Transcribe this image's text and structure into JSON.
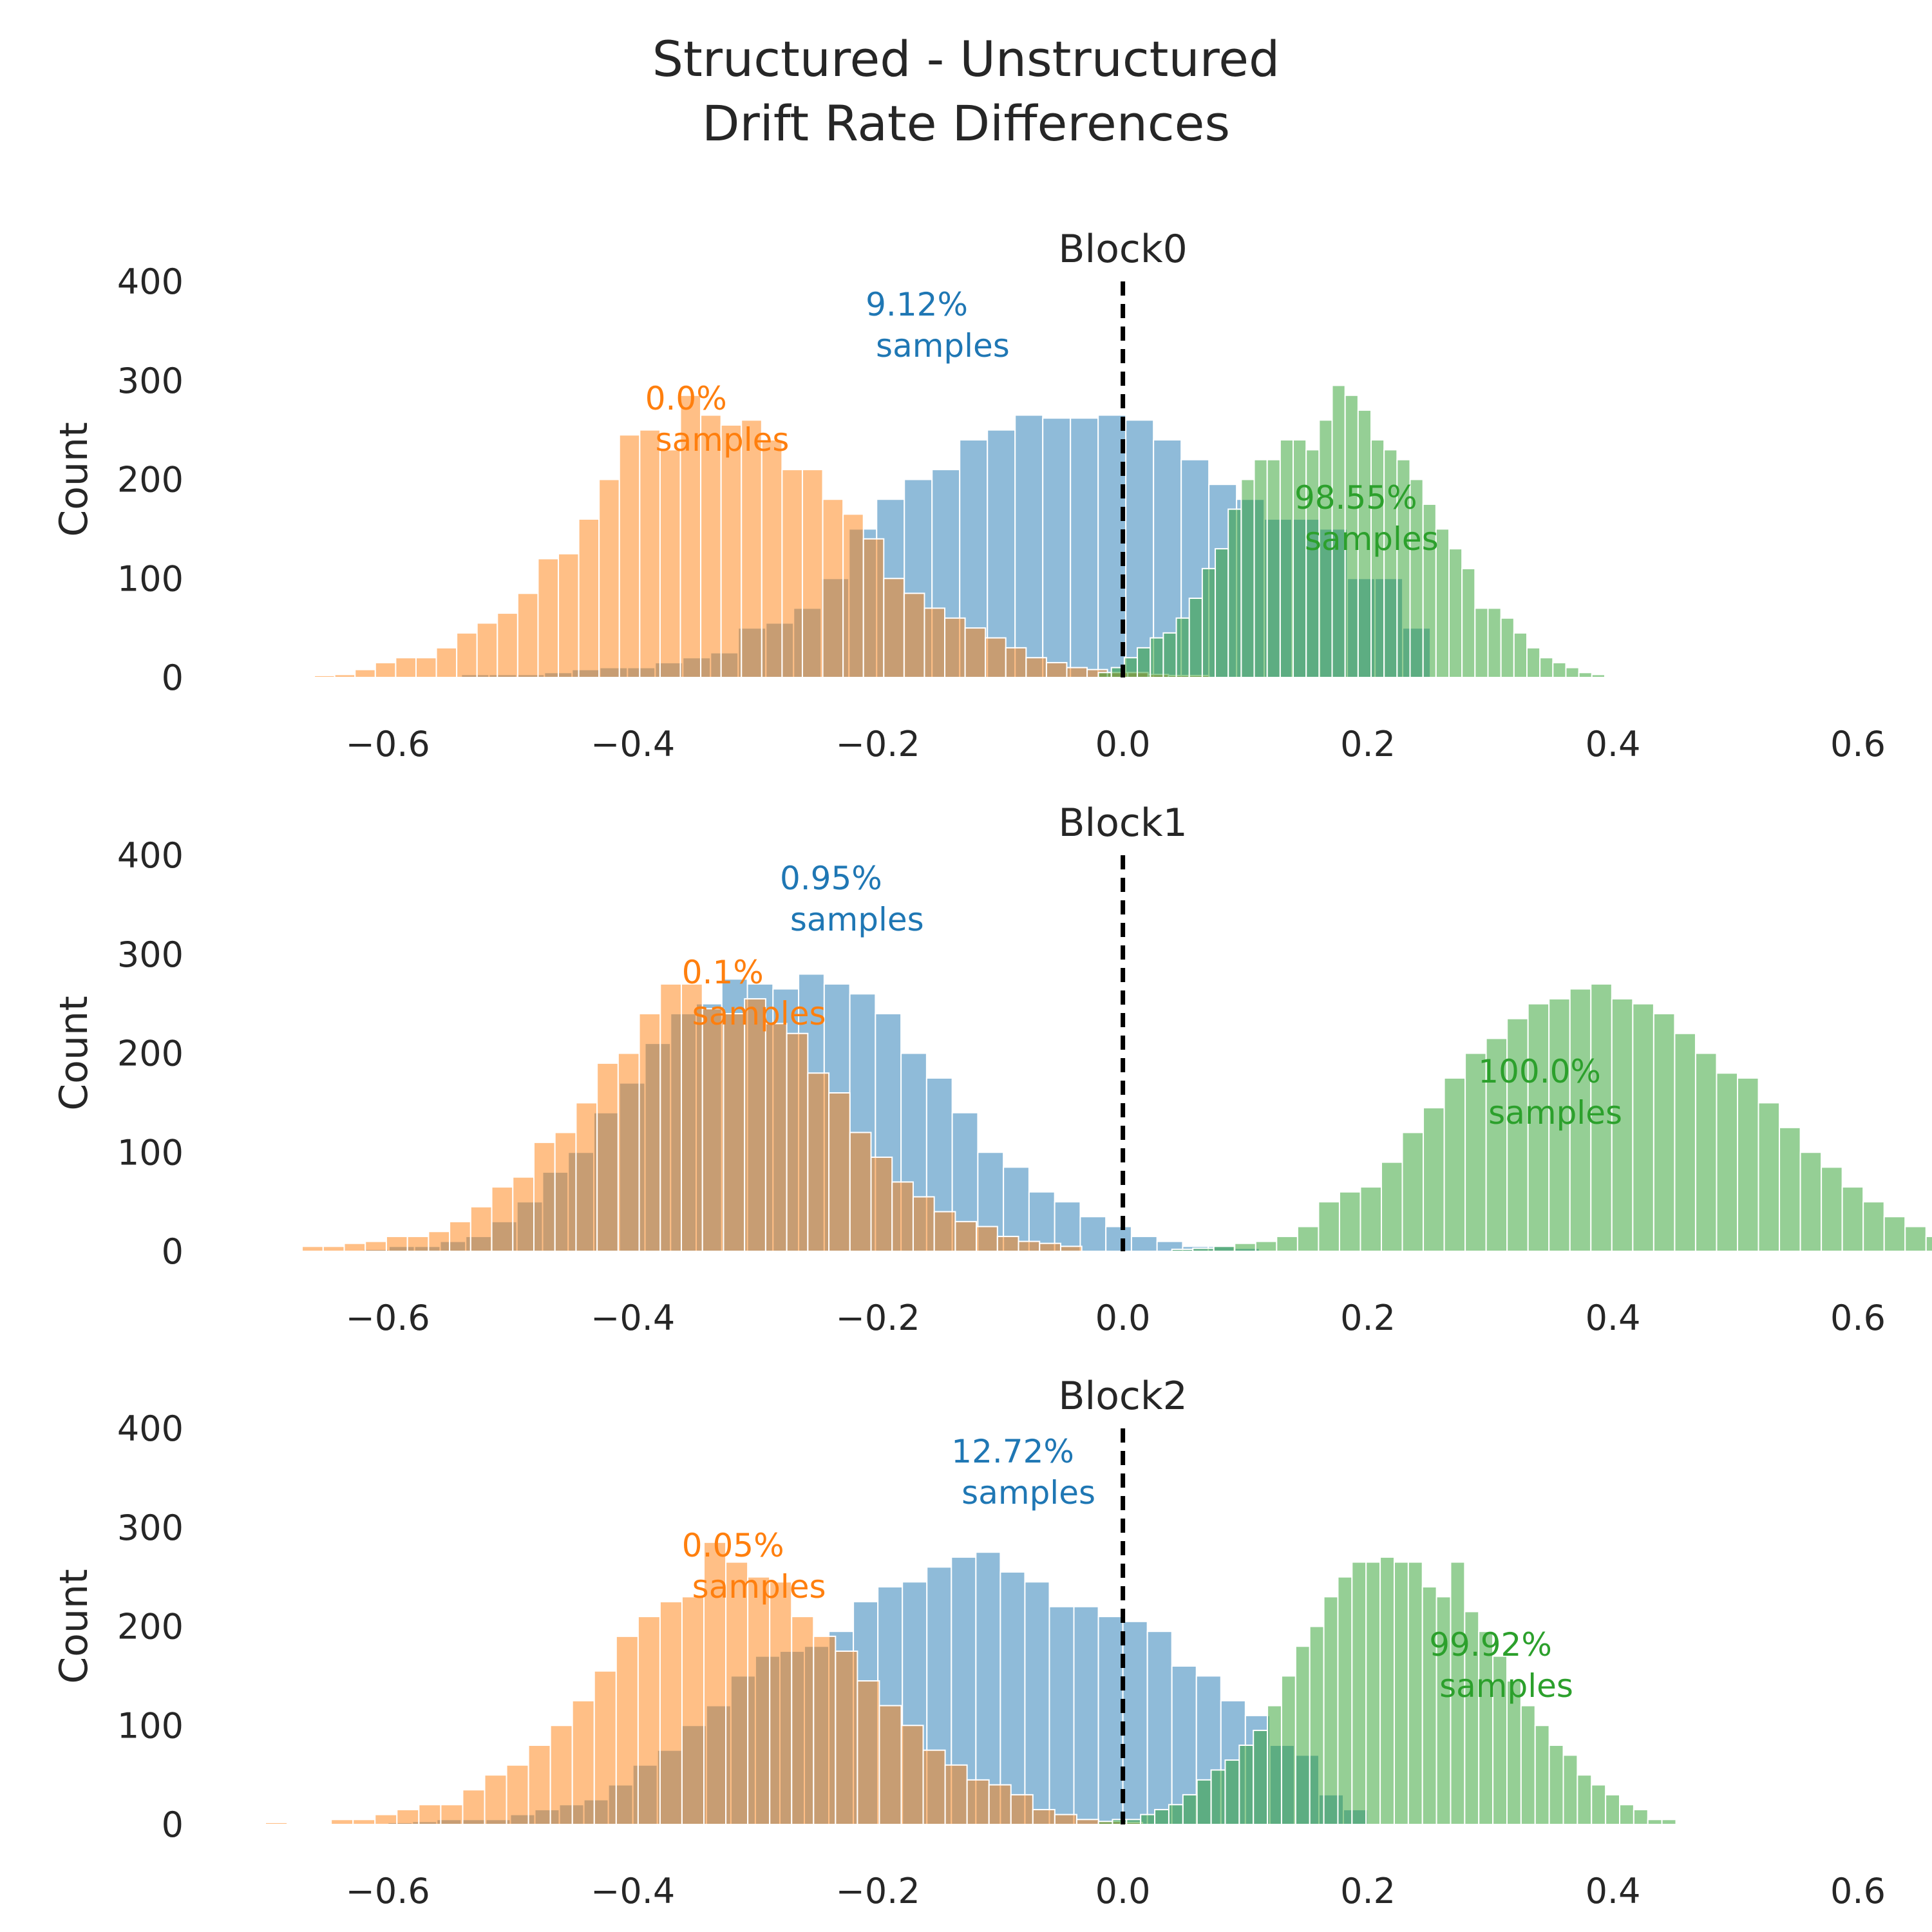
{
  "chart_data": {
    "type": "bar",
    "title": "Structured - Unstructured\nDrift Rate Differences",
    "xlim": [
      -0.7,
      0.6
    ],
    "ylim": [
      0,
      400
    ],
    "xticks": [
      "−0.6",
      "−0.4",
      "−0.2",
      "0.0",
      "0.2",
      "0.4",
      "0.6"
    ],
    "xtick_values": [
      -0.6,
      -0.4,
      -0.2,
      0.0,
      0.2,
      0.4,
      0.6
    ],
    "yticks": [
      "0",
      "100",
      "200",
      "300",
      "400"
    ],
    "ytick_values": [
      0,
      100,
      200,
      300,
      400
    ],
    "ylabel": "Count",
    "grid": false,
    "reference_line": {
      "x": 0.0,
      "style": "dashed",
      "color": "#000000"
    },
    "colors": {
      "blue": "#1f77b4",
      "orange": "#ff7f0e",
      "green": "#2ca02c"
    },
    "panels": [
      {
        "title": "Block0",
        "series": [
          {
            "color": "blue",
            "bin_start": -0.54,
            "bin_width": 0.0226,
            "counts": [
              3,
              3,
              3,
              5,
              8,
              10,
              10,
              15,
              20,
              25,
              50,
              55,
              70,
              100,
              150,
              180,
              200,
              210,
              240,
              250,
              265,
              262,
              262,
              265,
              260,
              240,
              220,
              195,
              180,
              160,
              160,
              150,
              100,
              100,
              50
            ]
          },
          {
            "color": "orange",
            "bin_start": -0.66,
            "bin_width": 0.0166,
            "counts": [
              2,
              3,
              8,
              15,
              20,
              20,
              30,
              45,
              55,
              65,
              85,
              120,
              125,
              160,
              200,
              245,
              250,
              230,
              285,
              265,
              255,
              260,
              240,
              210,
              210,
              180,
              165,
              140,
              100,
              85,
              70,
              60,
              50,
              40,
              30,
              20,
              15,
              10,
              8,
              5,
              5,
              3,
              2,
              2
            ]
          },
          {
            "color": "green",
            "bin_start": -0.02,
            "bin_width": 0.0106,
            "counts": [
              5,
              10,
              20,
              30,
              40,
              45,
              60,
              80,
              110,
              130,
              170,
              200,
              220,
              220,
              240,
              240,
              230,
              260,
              295,
              285,
              270,
              240,
              230,
              220,
              200,
              175,
              150,
              130,
              110,
              70,
              70,
              60,
              45,
              30,
              20,
              15,
              10,
              5,
              3
            ]
          }
        ],
        "annotations": [
          {
            "color": "blue",
            "x": -0.21,
            "y": 320,
            "text": "9.12%\n samples"
          },
          {
            "color": "orange",
            "x": -0.39,
            "y": 225,
            "text": "0.0%\n samples"
          },
          {
            "color": "green",
            "x": 0.14,
            "y": 125,
            "text": "98.55%\n samples"
          }
        ]
      },
      {
        "title": "Block1",
        "series": [
          {
            "color": "blue",
            "bin_start": -0.62,
            "bin_width": 0.0209,
            "counts": [
              2,
              5,
              5,
              10,
              15,
              30,
              50,
              80,
              100,
              140,
              170,
              210,
              240,
              250,
              275,
              270,
              265,
              280,
              270,
              260,
              240,
              200,
              175,
              140,
              100,
              85,
              60,
              50,
              35,
              25,
              15,
              10,
              5,
              5,
              3
            ]
          },
          {
            "color": "orange",
            "bin_start": -0.67,
            "bin_width": 0.0172,
            "counts": [
              5,
              5,
              8,
              10,
              15,
              15,
              20,
              30,
              45,
              65,
              75,
              110,
              120,
              150,
              190,
              200,
              240,
              270,
              270,
              245,
              240,
              255,
              230,
              220,
              180,
              160,
              120,
              95,
              70,
              55,
              40,
              30,
              25,
              15,
              10,
              8,
              5
            ]
          },
          {
            "color": "green",
            "bin_start": 0.04,
            "bin_width": 0.0171,
            "counts": [
              2,
              3,
              5,
              8,
              10,
              15,
              25,
              50,
              60,
              65,
              90,
              120,
              145,
              175,
              200,
              215,
              235,
              250,
              255,
              265,
              270,
              255,
              250,
              240,
              220,
              200,
              180,
              175,
              150,
              125,
              100,
              85,
              65,
              50,
              35,
              25,
              15,
              10,
              5,
              3,
              2,
              2
            ]
          }
        ],
        "annotations": [
          {
            "color": "blue",
            "x": -0.28,
            "y": 320,
            "text": "0.95%\n samples"
          },
          {
            "color": "orange",
            "x": -0.36,
            "y": 225,
            "text": "0.1%\n samples"
          },
          {
            "color": "green",
            "x": 0.29,
            "y": 125,
            "text": "100.0%\n samples"
          }
        ]
      },
      {
        "title": "Block2",
        "series": [
          {
            "color": "blue",
            "bin_start": -0.6,
            "bin_width": 0.02,
            "counts": [
              2,
              3,
              5,
              5,
              5,
              10,
              15,
              20,
              25,
              40,
              60,
              75,
              100,
              120,
              150,
              170,
              175,
              180,
              195,
              225,
              240,
              245,
              260,
              270,
              275,
              255,
              245,
              220,
              220,
              210,
              205,
              195,
              160,
              150,
              125,
              110,
              80,
              70,
              30,
              15
            ]
          },
          {
            "color": "orange",
            "bin_start": -0.7,
            "bin_width": 0.0179,
            "counts": [
              2,
              0,
              0,
              5,
              5,
              10,
              15,
              20,
              20,
              35,
              50,
              60,
              80,
              100,
              125,
              155,
              190,
              210,
              225,
              230,
              285,
              265,
              250,
              245,
              210,
              190,
              175,
              145,
              120,
              100,
              75,
              60,
              45,
              40,
              30,
              15,
              10,
              5,
              3,
              2
            ]
          },
          {
            "color": "green",
            "bin_start": -0.02,
            "bin_width": 0.0115,
            "counts": [
              3,
              5,
              5,
              10,
              15,
              20,
              30,
              45,
              55,
              65,
              80,
              95,
              120,
              150,
              180,
              200,
              230,
              250,
              265,
              265,
              270,
              265,
              265,
              240,
              230,
              265,
              215,
              195,
              170,
              145,
              120,
              100,
              80,
              70,
              50,
              40,
              30,
              20,
              15,
              5,
              5
            ]
          }
        ],
        "annotations": [
          {
            "color": "blue",
            "x": -0.14,
            "y": 320,
            "text": "12.72%\n samples"
          },
          {
            "color": "orange",
            "x": -0.36,
            "y": 225,
            "text": "0.05%\n samples"
          },
          {
            "color": "green",
            "x": 0.25,
            "y": 125,
            "text": "99.92%\n samples"
          }
        ]
      }
    ]
  }
}
